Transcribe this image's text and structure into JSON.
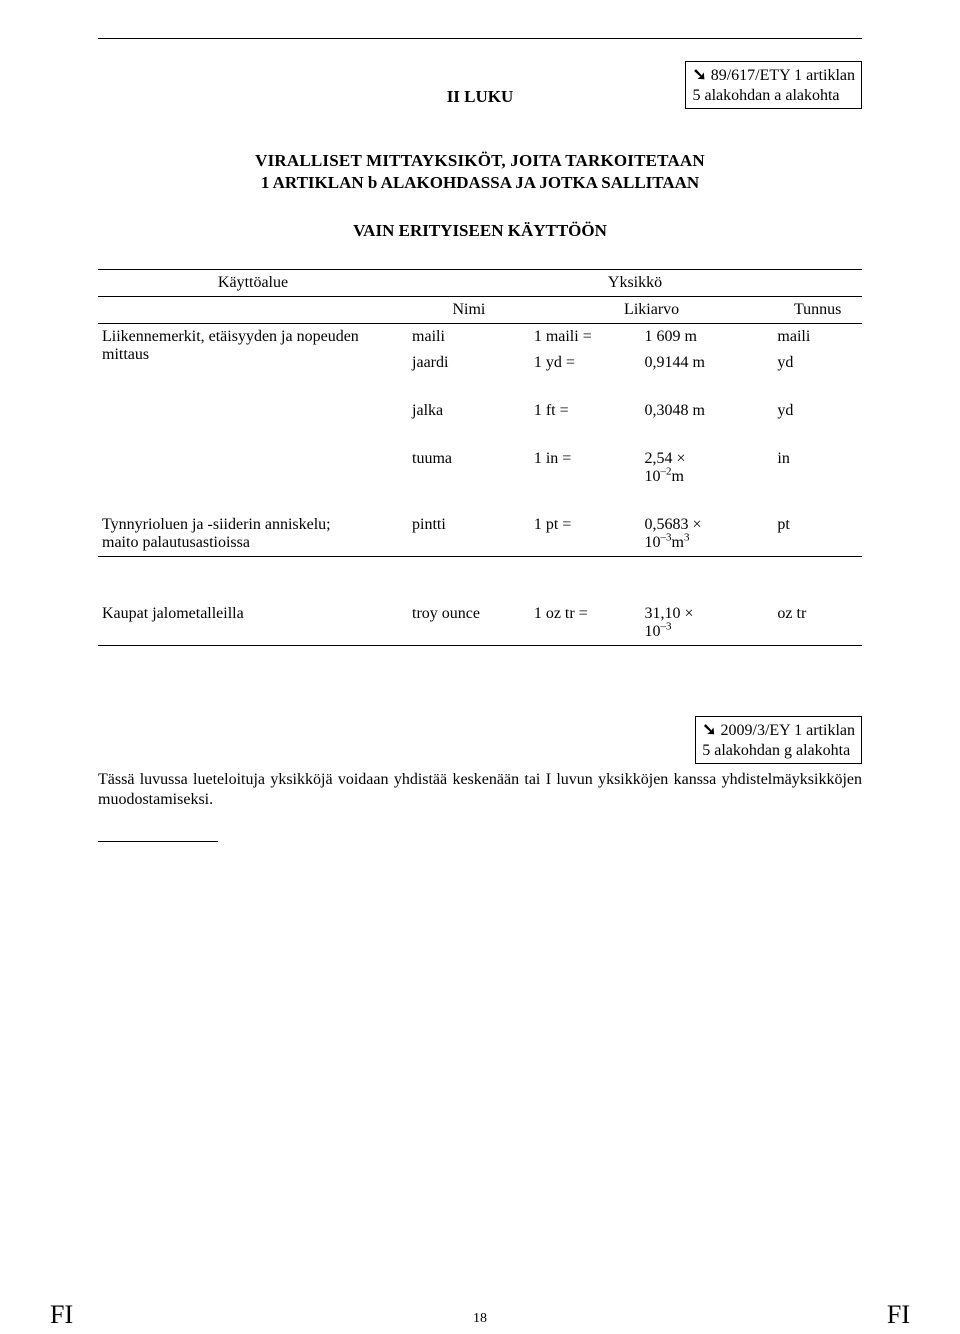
{
  "top_annotation": {
    "line1": "89/617/ETY 1 artiklan",
    "line2": "5 alakohdan a alakohta"
  },
  "chapter": "II LUKU",
  "title_line1": "VIRALLISET MITTAYKSIKÖT, JOITA TARKOITETAAN",
  "title_line2": "1 ARTIKLAN b ALAKOHDASSA JA JOTKA SALLITAAN",
  "title_line3": "VAIN ERITYISEEN KÄYTTÖÖN",
  "table": {
    "hdr_use": "Käyttöalue",
    "hdr_unit": "Yksikkö",
    "hdr_name": "Nimi",
    "hdr_approx": "Likiarvo",
    "hdr_symbol": "Tunnus",
    "row1_use_a": "Liikennemerkit, etäisyyden ja nopeuden",
    "row1_use_b": "mittaus",
    "r_mile_name": "maili",
    "r_mile_eq": "1 maili =",
    "r_mile_val": "1 609 m",
    "r_mile_sym": "maili",
    "r_yard_name": "jaardi",
    "r_yard_eq": "1 yd =",
    "r_yard_val": "0,9144 m",
    "r_yard_sym": "yd",
    "r_foot_name": "jalka",
    "r_foot_eq": "1 ft =",
    "r_foot_val": "0,3048 m",
    "r_foot_sym": "yd",
    "r_inch_name": "tuuma",
    "r_inch_eq": "1 in =",
    "r_inch_val_a": "2,54 ×",
    "r_inch_val_b": "10",
    "r_inch_val_exp": "–2",
    "r_inch_val_c": "m",
    "r_inch_sym": "in",
    "row2_use_a": "Tynnyrioluen ja -siiderin anniskelu;",
    "row2_use_b": "maito palautusastioissa",
    "r_pint_name": "pintti",
    "r_pint_eq": "1 pt =",
    "r_pint_val_a": "0,5683 ×",
    "r_pint_val_b": "10",
    "r_pint_val_exp": "–3",
    "r_pint_val_c": "m",
    "r_pint_val_cexp": "3",
    "r_pint_sym": "pt",
    "row3_use": "Kaupat jalometalleilla",
    "r_troy_name": "troy ounce",
    "r_troy_eq": "1 oz tr =",
    "r_troy_val_a": "31,10 ×",
    "r_troy_val_b": "10",
    "r_troy_val_exp": "–3",
    "r_troy_sym": "oz tr"
  },
  "bottom_annotation": {
    "line1": "2009/3/EY 1 artiklan",
    "line2": "5 alakohdan g alakohta"
  },
  "paragraph": "Tässä luvussa lueteloituja yksikköjä voidaan yhdistää keskenään tai I luvun yksikköjen kanssa yhdistelmäyksikköjen muodostamiseksi.",
  "footer": {
    "fi": "FI",
    "page": "18"
  }
}
